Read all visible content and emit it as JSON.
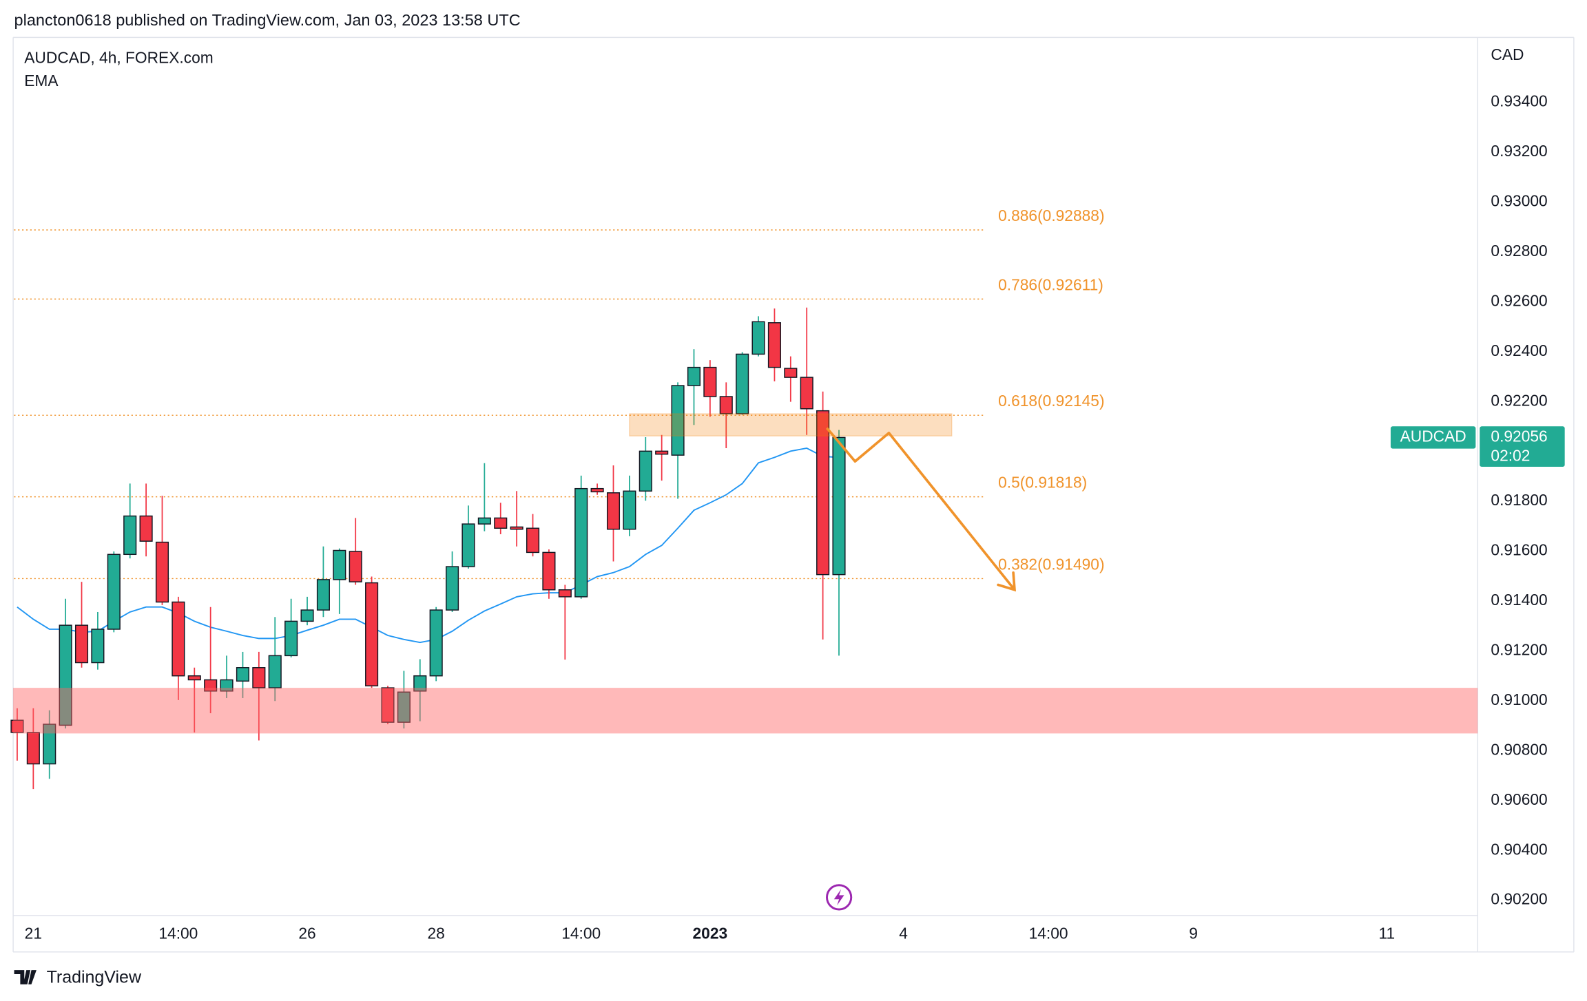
{
  "chart_data": {
    "type": "candlestick",
    "title": "plancton0618 published on TradingView.com, Jan 03, 2023 13:58 UTC",
    "subtitle": "AUDCAD, 4h, FOREX.com",
    "y_label": "CAD",
    "brand": "TradingView",
    "x": [
      0,
      1,
      2,
      3,
      4,
      5,
      6,
      7,
      8,
      9,
      10,
      11,
      12,
      13,
      14,
      15,
      16,
      17,
      18,
      19,
      20,
      21,
      22,
      23,
      24,
      25,
      26,
      27,
      28,
      29,
      30,
      31,
      32,
      33,
      34,
      35,
      36,
      37,
      38,
      39,
      40,
      41,
      42,
      43,
      44,
      45,
      46,
      47,
      48,
      49,
      50,
      51
    ],
    "open": [
      0.90922,
      0.90873,
      0.90747,
      0.90902,
      0.91303,
      0.91153,
      0.91287,
      0.91587,
      0.91741,
      0.91636,
      0.91396,
      0.911,
      0.91084,
      0.91039,
      0.91079,
      0.91133,
      0.91052,
      0.91181,
      0.91319,
      0.91364,
      0.91486,
      0.91599,
      0.91473,
      0.91052,
      0.90914,
      0.91039,
      0.911,
      0.91364,
      0.91538,
      0.91709,
      0.91733,
      0.91697,
      0.91692,
      0.91595,
      0.91445,
      0.91417,
      0.91851,
      0.91834,
      0.91688,
      0.91841,
      0.92001,
      0.91985,
      0.92264,
      0.92337,
      0.9222,
      0.92151,
      0.9239,
      0.92516,
      0.92333,
      0.92297,
      0.92163,
      0.91506
    ],
    "high": [
      0.9097,
      0.9097,
      0.90962,
      0.91409,
      0.91477,
      0.91356,
      0.91599,
      0.91871,
      0.91871,
      0.91822,
      0.91417,
      0.91133,
      0.91376,
      0.91181,
      0.91196,
      0.91196,
      0.91336,
      0.91409,
      0.91417,
      0.91619,
      0.91611,
      0.91733,
      0.91498,
      0.9106,
      0.9112,
      0.91167,
      0.91376,
      0.91599,
      0.91783,
      0.91953,
      0.91794,
      0.91841,
      0.91749,
      0.91607,
      0.91465,
      0.91903,
      0.91871,
      0.91944,
      0.91903,
      0.92057,
      0.92066,
      0.92277,
      0.9241,
      0.92366,
      0.92277,
      0.92398,
      0.92542,
      0.92573,
      0.92381,
      0.92577,
      0.9224,
      0.92086
    ],
    "low": [
      0.9076,
      0.90646,
      0.90687,
      0.90889,
      0.91133,
      0.91125,
      0.91275,
      0.91571,
      0.91579,
      0.91384,
      0.91003,
      0.90873,
      0.9095,
      0.91011,
      0.91011,
      0.90841,
      0.90999,
      0.91174,
      0.91303,
      0.91336,
      0.91348,
      0.91465,
      0.91052,
      0.90906,
      0.90889,
      0.90918,
      0.91079,
      0.91356,
      0.9153,
      0.9168,
      0.91668,
      0.91619,
      0.91579,
      0.91409,
      0.91165,
      0.91409,
      0.91826,
      0.91559,
      0.9166,
      0.91802,
      0.91883,
      0.9181,
      0.92106,
      0.92139,
      0.92013,
      0.92147,
      0.92381,
      0.92281,
      0.92199,
      0.92066,
      0.91246,
      0.91181
    ],
    "close": [
      0.90873,
      0.90747,
      0.90906,
      0.91303,
      0.91153,
      0.91287,
      0.91587,
      0.91741,
      0.9164,
      0.91396,
      0.911,
      0.91084,
      0.91039,
      0.91084,
      0.91133,
      0.91052,
      0.91181,
      0.91319,
      0.91364,
      0.91486,
      0.91603,
      0.91477,
      0.9106,
      0.90914,
      0.91035,
      0.911,
      0.91364,
      0.91538,
      0.91709,
      0.91733,
      0.91692,
      0.91688,
      0.91595,
      0.91445,
      0.91417,
      0.91851,
      0.91838,
      0.91688,
      0.91841,
      0.92001,
      0.91989,
      0.92264,
      0.92337,
      0.9222,
      0.92151,
      0.9239,
      0.9252,
      0.92337,
      0.92297,
      0.92171,
      0.91506,
      0.92056
    ],
    "up_color": "#22ab94",
    "down_color": "#f23645",
    "overlay": {
      "name": "EMA",
      "color": "#2196f3",
      "values": [
        0.91376,
        0.91327,
        0.91287,
        0.91287,
        0.91275,
        0.91279,
        0.91319,
        0.91356,
        0.91376,
        0.91376,
        0.91352,
        0.91319,
        0.91295,
        0.91279,
        0.91262,
        0.9125,
        0.9125,
        0.91262,
        0.91283,
        0.91303,
        0.91327,
        0.91327,
        0.91295,
        0.91262,
        0.91246,
        0.91234,
        0.91246,
        0.91279,
        0.91323,
        0.9136,
        0.91388,
        0.91417,
        0.91429,
        0.91433,
        0.91433,
        0.91465,
        0.91498,
        0.91514,
        0.91538,
        0.91587,
        0.91623,
        0.91692,
        0.91764,
        0.91794,
        0.91826,
        0.91871,
        0.91954,
        0.91976,
        0.92001,
        0.92013,
        0.9198,
        0.91976
      ]
    },
    "xlim": [
      -0.25,
      90.64
    ],
    "xticks": [
      {
        "value": 1,
        "label": "21"
      },
      {
        "value": 10,
        "label": "14:00"
      },
      {
        "value": 18,
        "label": "26"
      },
      {
        "value": 26,
        "label": "28"
      },
      {
        "value": 35,
        "label": "14:00"
      },
      {
        "value": 43,
        "label": "2023",
        "bold": true
      },
      {
        "value": 55,
        "label": "4"
      },
      {
        "value": 64,
        "label": "14:00"
      },
      {
        "value": 73,
        "label": "9"
      },
      {
        "value": 85,
        "label": "11"
      }
    ],
    "ylim": [
      0.90139,
      0.9366
    ],
    "yticks": [
      {
        "value": 0.902,
        "label": "0.90200"
      },
      {
        "value": 0.904,
        "label": "0.90400"
      },
      {
        "value": 0.906,
        "label": "0.90600"
      },
      {
        "value": 0.908,
        "label": "0.90800"
      },
      {
        "value": 0.91,
        "label": "0.91000"
      },
      {
        "value": 0.912,
        "label": "0.91200"
      },
      {
        "value": 0.914,
        "label": "0.91400"
      },
      {
        "value": 0.916,
        "label": "0.91600"
      },
      {
        "value": 0.918,
        "label": "0.91800"
      },
      {
        "value": 0.92,
        "label": "0.92000"
      },
      {
        "value": 0.922,
        "label": "0.92200"
      },
      {
        "value": 0.924,
        "label": "0.92400"
      },
      {
        "value": 0.926,
        "label": "0.92600"
      },
      {
        "value": 0.928,
        "label": "0.92800"
      },
      {
        "value": 0.93,
        "label": "0.93000"
      },
      {
        "value": 0.932,
        "label": "0.93200"
      },
      {
        "value": 0.934,
        "label": "0.93400"
      }
    ],
    "fib_color": "#f0932b",
    "fib_x": [
      -0.2,
      60
    ],
    "fib_levels": [
      {
        "value": 0.92888,
        "label": "0.886(0.92888)"
      },
      {
        "value": 0.92611,
        "label": "0.786(0.92611)"
      },
      {
        "value": 0.92145,
        "label": "0.618(0.92145)"
      },
      {
        "value": 0.91818,
        "label": "0.5(0.91818)"
      },
      {
        "value": 0.9149,
        "label": "0.382(0.91490)"
      }
    ],
    "zones": [
      {
        "from": 0.92062,
        "to": 0.92151,
        "x": [
          38,
          58
        ],
        "color": "rgba(245,124,0,0.25)"
      },
      {
        "from": 0.90869,
        "to": 0.91052,
        "color": "rgba(255,100,100,0.45)"
      }
    ],
    "projection": {
      "x": [
        50.25,
        52,
        54.1,
        61.9
      ],
      "y": [
        0.92094,
        0.9196,
        0.92074,
        0.91445
      ],
      "color": "#f0932b"
    },
    "last_price": {
      "symbol": "AUDCAD",
      "value": 0.92056,
      "countdown": "02:02",
      "color": "#22ab94"
    }
  }
}
